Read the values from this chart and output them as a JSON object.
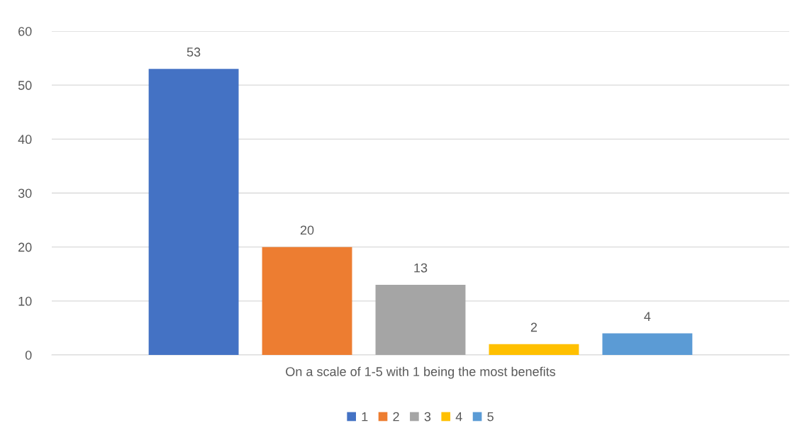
{
  "chart_data": {
    "type": "bar",
    "categories": [
      "On a scale of 1-5 with 1 being the most benefits"
    ],
    "series": [
      {
        "name": "1",
        "color": "#4472c4",
        "values": [
          53
        ]
      },
      {
        "name": "2",
        "color": "#ed7d31",
        "values": [
          20
        ]
      },
      {
        "name": "3",
        "color": "#a5a5a5",
        "values": [
          13
        ]
      },
      {
        "name": "4",
        "color": "#ffc000",
        "values": [
          2
        ]
      },
      {
        "name": "5",
        "color": "#5b9bd5",
        "values": [
          4
        ]
      }
    ],
    "ylim": [
      0,
      60
    ],
    "yticks": [
      0,
      10,
      20,
      30,
      40,
      50,
      60
    ],
    "grid": "y",
    "legend": "bottom",
    "data_labels": true
  }
}
